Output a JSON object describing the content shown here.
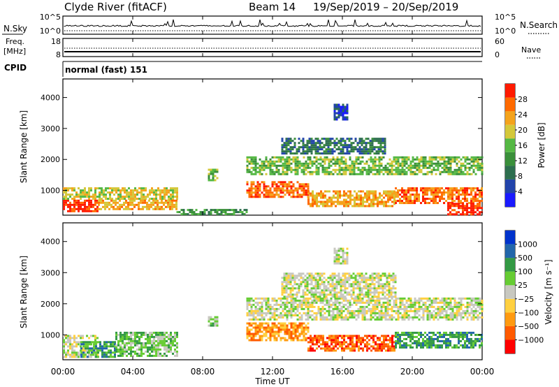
{
  "header": {
    "title": "Clyde River (fitACF)",
    "beam_label": "Beam 14",
    "date_range": "19/Sep/2019 – 20/Sep/2019",
    "cpid_text": "normal (fast) 151"
  },
  "status_panels": {
    "nsky_label": "N.Sky",
    "nsky_ticks": [
      "10^5",
      "10^0"
    ],
    "nsearch_label": "N.Search",
    "nsearch_ticks": [
      "10^5",
      "10^0"
    ],
    "freq_label": "Freq.",
    "freq_unit": "[MHz]",
    "freq_ticks": [
      "18",
      "8"
    ],
    "nave_label": "Nave",
    "nave_ticks": [
      "60",
      "0"
    ],
    "cpid_label": "CPID"
  },
  "time_axis": {
    "xlabel": "Time UT",
    "tick_labels": [
      "00:00",
      "04:00",
      "08:00",
      "12:00",
      "16:00",
      "20:00",
      "00:00"
    ]
  },
  "colors": {
    "power_scale": [
      "#1a1aff",
      "#2244aa",
      "#2d6e4e",
      "#3a8f3a",
      "#55b844",
      "#d4c83a",
      "#f4a31c",
      "#ff6a00",
      "#ff1a00"
    ],
    "velocity_scale": [
      "#ff0000",
      "#ff5a00",
      "#ff9a10",
      "#ffd040",
      "#c8c8c0",
      "#66cc33",
      "#339944",
      "#2266aa",
      "#0033cc"
    ]
  },
  "chart_data": [
    {
      "type": "heatmap",
      "name": "power",
      "ylabel": "Slant Range [km]",
      "ylim": [
        200,
        4600
      ],
      "y_tick_labels": [
        "1000",
        "2000",
        "3000",
        "4000"
      ],
      "xlim_hours": [
        0,
        24
      ],
      "colorbar_label": "Power [dB]",
      "colorbar_ticks": [
        "4",
        "8",
        "12",
        "16",
        "20",
        "24",
        "28"
      ],
      "regions": [
        {
          "t0": 0.0,
          "t1": 2.0,
          "r0": 300,
          "r1": 700,
          "level": 8
        },
        {
          "t0": 0.0,
          "t1": 6.5,
          "r0": 700,
          "r1": 1100,
          "level": 5
        },
        {
          "t0": 2.0,
          "t1": 6.5,
          "r0": 400,
          "r1": 700,
          "level": 6
        },
        {
          "t0": 6.5,
          "t1": 10.5,
          "r0": 250,
          "r1": 400,
          "level": 3
        },
        {
          "t0": 8.3,
          "t1": 8.9,
          "r0": 1300,
          "r1": 1700,
          "level": 4
        },
        {
          "t0": 10.5,
          "t1": 14.0,
          "r0": 800,
          "r1": 1300,
          "level": 7
        },
        {
          "t0": 10.5,
          "t1": 24.0,
          "r0": 1500,
          "r1": 2100,
          "level": 4
        },
        {
          "t0": 14.0,
          "t1": 19.0,
          "r0": 500,
          "r1": 1000,
          "level": 6
        },
        {
          "t0": 19.0,
          "t1": 24.0,
          "r0": 600,
          "r1": 1100,
          "level": 7
        },
        {
          "t0": 22.0,
          "t1": 24.0,
          "r0": 250,
          "r1": 600,
          "level": 8
        },
        {
          "t0": 12.5,
          "t1": 18.5,
          "r0": 2200,
          "r1": 2700,
          "level": 2
        },
        {
          "t0": 15.5,
          "t1": 16.3,
          "r0": 3300,
          "r1": 3800,
          "level": 1
        }
      ]
    },
    {
      "type": "heatmap",
      "name": "velocity",
      "ylabel": "Slant Range [km]",
      "ylim": [
        200,
        4600
      ],
      "y_tick_labels": [
        "1000",
        "2000",
        "3000",
        "4000"
      ],
      "xlim_hours": [
        0,
        24
      ],
      "colorbar_label": "Velocity [m s⁻¹]",
      "colorbar_ticks": [
        "1000",
        "500",
        "100",
        "25",
        "−25",
        "−100",
        "−500",
        "−1000"
      ],
      "regions": [
        {
          "t0": 0.0,
          "t1": 2.0,
          "r0": 300,
          "r1": 1000,
          "level": 4
        },
        {
          "t0": 1.0,
          "t1": 3.0,
          "r0": 300,
          "r1": 800,
          "level": 6
        },
        {
          "t0": 3.0,
          "t1": 6.5,
          "r0": 300,
          "r1": 1100,
          "level": 5
        },
        {
          "t0": 8.3,
          "t1": 8.9,
          "r0": 1300,
          "r1": 1600,
          "level": 5
        },
        {
          "t0": 10.5,
          "t1": 14.0,
          "r0": 800,
          "r1": 1400,
          "level": 2
        },
        {
          "t0": 10.5,
          "t1": 24.0,
          "r0": 1500,
          "r1": 2200,
          "level": 4
        },
        {
          "t0": 14.0,
          "t1": 19.0,
          "r0": 500,
          "r1": 1000,
          "level": 1
        },
        {
          "t0": 19.0,
          "t1": 24.0,
          "r0": 600,
          "r1": 1100,
          "level": 6
        },
        {
          "t0": 12.5,
          "t1": 19.0,
          "r0": 2200,
          "r1": 3000,
          "level": 4
        },
        {
          "t0": 15.5,
          "t1": 16.3,
          "r0": 3300,
          "r1": 3800,
          "level": 4
        }
      ]
    }
  ]
}
